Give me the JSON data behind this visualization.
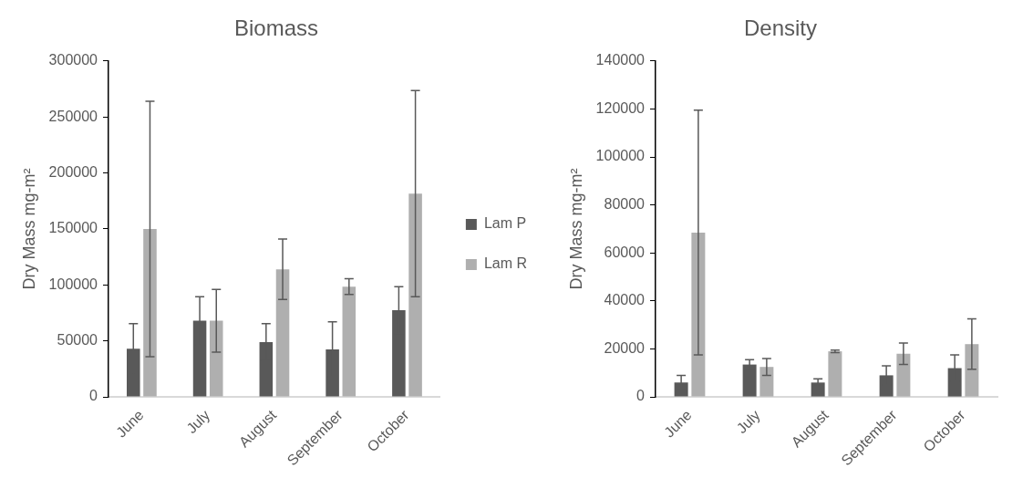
{
  "chart_data": [
    {
      "type": "bar",
      "title": "Biomass",
      "ylabel": "Dry Mass mg-m²",
      "categories": [
        "June",
        "July",
        "August",
        "September",
        "October"
      ],
      "ylim": [
        0,
        300000
      ],
      "yticks": [
        0,
        50000,
        100000,
        150000,
        200000,
        250000,
        300000
      ],
      "legend": "right",
      "series": [
        {
          "name": "Lam P",
          "color": "#595959",
          "values": [
            43000,
            68000,
            49000,
            42500,
            77500
          ],
          "errors": [
            22500,
            21500,
            16500,
            24500,
            21000
          ]
        },
        {
          "name": "Lam R",
          "color": "#afafaf",
          "values": [
            150000,
            68000,
            114000,
            98500,
            181500
          ],
          "errors": [
            114000,
            28000,
            27000,
            7000,
            92000
          ]
        }
      ]
    },
    {
      "type": "bar",
      "title": "Density",
      "ylabel": "Dry Mass mg-m²",
      "categories": [
        "June",
        "July",
        "August",
        "September",
        "October"
      ],
      "ylim": [
        0,
        140000
      ],
      "yticks": [
        0,
        20000,
        40000,
        60000,
        80000,
        100000,
        120000,
        140000
      ],
      "series": [
        {
          "color": "#595959",
          "values": [
            6000,
            13500,
            6000,
            9000,
            12000
          ],
          "errors": [
            3000,
            2000,
            1500,
            4000,
            5500
          ]
        },
        {
          "color": "#afafaf",
          "values": [
            68500,
            12500,
            19000,
            18000,
            22000
          ],
          "errors": [
            51000,
            3500,
            500,
            4500,
            10500
          ]
        }
      ]
    }
  ]
}
